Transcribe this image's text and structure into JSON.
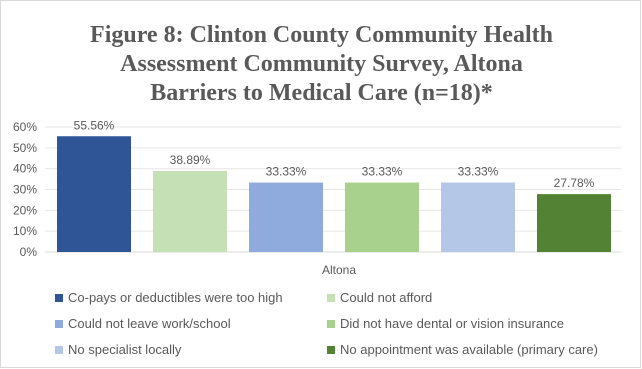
{
  "chart_data": {
    "type": "bar",
    "title_lines": [
      "Figure 8: Clinton County Community Health",
      "Assessment Community Survey, Altona",
      "Barriers to Medical Care (n=18)*"
    ],
    "categories": [
      "Altona"
    ],
    "xlabel": "Altona",
    "ylabel": "",
    "ylim": [
      0,
      60
    ],
    "y_ticks": [
      "0%",
      "10%",
      "20%",
      "30%",
      "40%",
      "50%",
      "60%"
    ],
    "grid": true,
    "legend_position": "bottom",
    "series": [
      {
        "name": "Co-pays or deductibles were too high",
        "values": [
          55.56
        ],
        "label": "55.56%",
        "color": "#2f5597"
      },
      {
        "name": "Could not afford",
        "values": [
          38.89
        ],
        "label": "38.89%",
        "color": "#c5e0b4"
      },
      {
        "name": "Could not leave work/school",
        "values": [
          33.33
        ],
        "label": "33.33%",
        "color": "#8faadc"
      },
      {
        "name": "Did not have dental or vision insurance",
        "values": [
          33.33
        ],
        "label": "33.33%",
        "color": "#a9d18e"
      },
      {
        "name": "No specialist locally",
        "values": [
          33.33
        ],
        "label": "33.33%",
        "color": "#b4c7e7"
      },
      {
        "name": "No appointment was available (primary care)",
        "values": [
          27.78
        ],
        "label": "27.78%",
        "color": "#548235"
      }
    ]
  }
}
